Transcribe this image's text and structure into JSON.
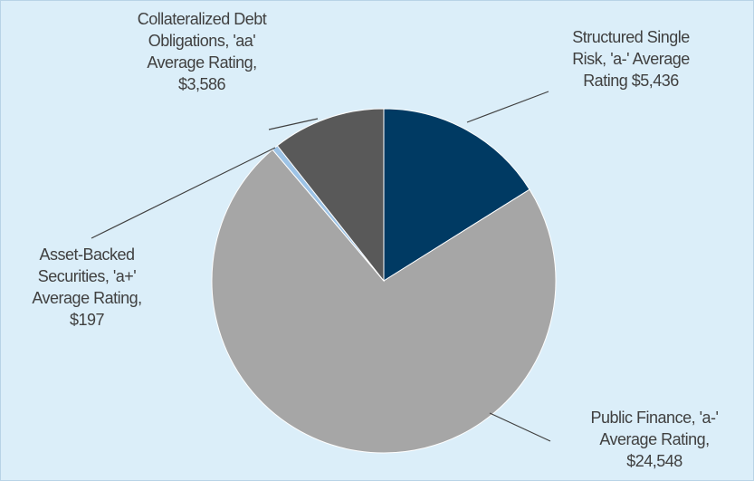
{
  "chart_data": {
    "type": "pie",
    "categories": [
      "Structured Single Risk, 'a-' Average Rating",
      "Public Finance, 'a-' Average Rating,",
      "Asset-Backed Securities, 'a+' Average Rating,",
      "Collateralized Debt Obligations, 'aa' Average Rating,"
    ],
    "values": [
      5436,
      24548,
      197,
      3586
    ],
    "value_labels": [
      "$5,436",
      "$24,548",
      "$197",
      "$3,586"
    ],
    "colors": [
      "#003a63",
      "#a6a6a6",
      "#9dc3e6",
      "#595959"
    ]
  }
}
